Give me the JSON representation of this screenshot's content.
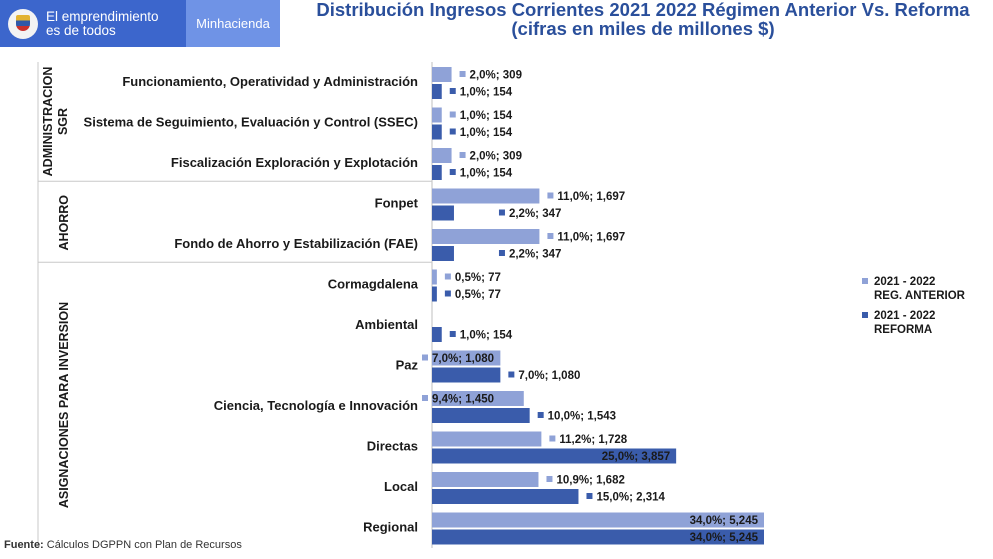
{
  "header": {
    "brand_line1": "El emprendimiento",
    "brand_line2": "es de todos",
    "ministry": "Minhacienda",
    "logo_icon": "colombia-coat-of-arms-icon"
  },
  "footer": {
    "source_label": "Fuente:",
    "source_text": " Cálculos DGPPN con Plan de Recursos"
  },
  "colors": {
    "reg_anterior": "#8fa2d7",
    "reforma": "#3a5cab",
    "brand_blue": "#3c66cc",
    "ministry_blue": "#6f93e6",
    "title_blue": "#2a4f9b"
  },
  "chart_data": {
    "type": "bar",
    "orientation": "horizontal",
    "title_line1": "Distribución Ingresos Corrientes 2021 2022 Régimen Anterior Vs. Reforma",
    "title_line2": "(cifras en miles de millones $)",
    "legend_position": "right",
    "grid": false,
    "series": [
      {
        "name": "2021 - 2022 REG. ANTERIOR",
        "name_line1": "2021 - 2022",
        "name_line2": "REG. ANTERIOR"
      },
      {
        "name": "2021 - 2022 REFORMA",
        "name_line1": "2021 - 2022",
        "name_line2": "REFORMA"
      }
    ],
    "groups": [
      {
        "name": "ADMINISTRACION SGR",
        "name_line1": "ADMINISTRACION",
        "name_line2": "SGR",
        "categories": [
          {
            "name": "Funcionamiento, Operatividad y Administración",
            "values": [
              309,
              154
            ],
            "pct": [
              "2,0%",
              "1,0%"
            ],
            "labels": [
              "309",
              "154"
            ]
          },
          {
            "name": "Sistema de Seguimiento, Evaluación y Control (SSEC)",
            "values": [
              154,
              154
            ],
            "pct": [
              "1,0%",
              "1,0%"
            ],
            "labels": [
              "154",
              "154"
            ]
          },
          {
            "name": "Fiscalización Exploración y Explotación",
            "values": [
              309,
              154
            ],
            "pct": [
              "2,0%",
              "1,0%"
            ],
            "labels": [
              "309",
              "154"
            ]
          }
        ]
      },
      {
        "name": "AHORRO",
        "name_line1": "AHORRO",
        "name_line2": "",
        "categories": [
          {
            "name": "Fonpet",
            "values": [
              1697,
              347
            ],
            "pct": [
              "11,0%",
              "2,2%"
            ],
            "labels": [
              "1,697",
              "347"
            ]
          },
          {
            "name": "Fondo de Ahorro y Estabilización (FAE)",
            "values": [
              1697,
              347
            ],
            "pct": [
              "11,0%",
              "2,2%"
            ],
            "labels": [
              "1,697",
              "347"
            ]
          }
        ]
      },
      {
        "name": "ASIGNACIONES PARA INVERSION",
        "name_line1": "ASIGNACIONES PARA INVERSION",
        "name_line2": "",
        "categories": [
          {
            "name": "Cormagdalena",
            "values": [
              77,
              77
            ],
            "pct": [
              "0,5%",
              "0,5%"
            ],
            "labels": [
              "77",
              "77"
            ]
          },
          {
            "name": "Ambiental",
            "values": [
              0,
              154
            ],
            "pct": [
              "",
              "1,0%"
            ],
            "labels": [
              "",
              "154"
            ]
          },
          {
            "name": "Paz",
            "values": [
              1080,
              1080
            ],
            "pct": [
              "7,0%",
              "7,0%"
            ],
            "labels": [
              "1,080",
              "1,080"
            ]
          },
          {
            "name": "Ciencia, Tecnología e Innovación",
            "values": [
              1450,
              1543
            ],
            "pct": [
              "9,4%",
              "10,0%"
            ],
            "labels": [
              "1,450",
              "1,543"
            ]
          },
          {
            "name": "Directas",
            "values": [
              1728,
              3857
            ],
            "pct": [
              "11,2%",
              "25,0%"
            ],
            "labels": [
              "1,728",
              "3,857"
            ]
          },
          {
            "name": "Local",
            "values": [
              1682,
              2314
            ],
            "pct": [
              "10,9%",
              "15,0%"
            ],
            "labels": [
              "1,682",
              "2,314"
            ]
          },
          {
            "name": "Regional",
            "values": [
              5245,
              5245
            ],
            "pct": [
              "34,0%",
              "34,0%"
            ],
            "labels": [
              "5,245",
              "5,245"
            ]
          }
        ]
      }
    ]
  }
}
